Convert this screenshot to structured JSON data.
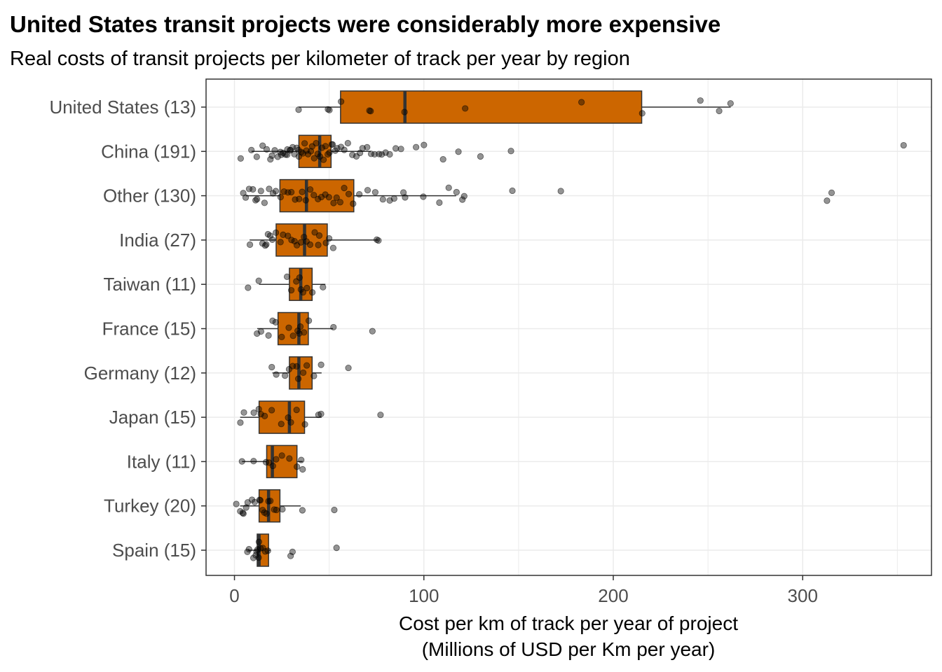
{
  "chart_data": {
    "type": "boxplot",
    "title": "United States transit projects were considerably more expensive",
    "subtitle": "Real costs of transit projects per kilometer of track per year by region",
    "xlabel_line1": "Cost per km of track per year of project",
    "xlabel_line2": "(Millions of USD per Km per year)",
    "xlim": [
      -15,
      368
    ],
    "xticks": [
      0,
      100,
      200,
      300
    ],
    "grid": true,
    "colors": {
      "box_fill": "#cc6600",
      "box_stroke": "#333333",
      "point": "#000000",
      "grid": "#ebebeb"
    },
    "categories": [
      {
        "label": "United States (13)",
        "whisker": [
          34,
          262
        ],
        "q1": 56,
        "median": 90,
        "q3": 215,
        "points": [
          34,
          49,
          50,
          56,
          71,
          72,
          90,
          122,
          183,
          215,
          246,
          256,
          262
        ]
      },
      {
        "label": "China (191)",
        "whisker": [
          9,
          72
        ],
        "q1": 34,
        "median": 45,
        "q3": 51,
        "points": [
          3,
          9,
          12,
          15,
          17,
          19,
          20,
          21,
          23,
          24,
          25,
          26,
          27,
          28,
          28,
          29,
          30,
          31,
          32,
          33,
          34,
          34,
          35,
          36,
          37,
          38,
          39,
          40,
          41,
          42,
          43,
          44,
          45,
          46,
          47,
          48,
          49,
          50,
          51,
          52,
          53,
          54,
          56,
          58,
          60,
          62,
          64,
          66,
          68,
          70,
          72,
          74,
          76,
          78,
          80,
          82,
          85,
          88,
          96,
          100,
          110,
          118,
          130,
          146,
          353
        ]
      },
      {
        "label": "Other (130)",
        "whisker": [
          6,
          117
        ],
        "q1": 24,
        "median": 38,
        "q3": 63,
        "points": [
          5,
          6,
          8,
          10,
          11,
          12,
          14,
          16,
          18,
          20,
          22,
          24,
          26,
          28,
          30,
          32,
          34,
          36,
          38,
          40,
          42,
          44,
          46,
          48,
          50,
          52,
          54,
          56,
          58,
          60,
          63,
          66,
          70,
          74,
          78,
          82,
          84,
          89,
          90,
          100,
          108,
          113,
          117,
          120,
          121,
          147,
          172,
          313,
          315
        ]
      },
      {
        "label": "India (27)",
        "whisker": [
          8,
          76
        ],
        "q1": 22,
        "median": 37,
        "q3": 49,
        "points": [
          8,
          15,
          16,
          17,
          18,
          19,
          20,
          22,
          24,
          26,
          28,
          30,
          32,
          33,
          35,
          37,
          38,
          40,
          42,
          44,
          45,
          48,
          50,
          52,
          75,
          76
        ]
      },
      {
        "label": "Taiwan (11)",
        "whisker": [
          13,
          48
        ],
        "q1": 29,
        "median": 35,
        "q3": 41,
        "points": [
          7,
          13,
          28,
          30,
          33,
          34,
          35,
          36,
          38,
          41,
          47
        ]
      },
      {
        "label": "France (15)",
        "whisker": [
          12,
          52
        ],
        "q1": 23,
        "median": 34,
        "q3": 39,
        "points": [
          12,
          14,
          18,
          20,
          22,
          25,
          29,
          31,
          33,
          34,
          35,
          37,
          39,
          52,
          73
        ]
      },
      {
        "label": "Germany (12)",
        "whisker": [
          20,
          46
        ],
        "q1": 29,
        "median": 34,
        "q3": 41,
        "points": [
          20,
          22,
          27,
          29,
          31,
          33,
          34,
          36,
          38,
          42,
          46,
          60
        ]
      },
      {
        "label": "Japan (15)",
        "whisker": [
          3,
          46
        ],
        "q1": 13,
        "median": 29,
        "q3": 37,
        "points": [
          3,
          5,
          10,
          13,
          14,
          16,
          20,
          25,
          28,
          30,
          33,
          37,
          44,
          46,
          77
        ]
      },
      {
        "label": "Italy (11)",
        "whisker": [
          4,
          36
        ],
        "q1": 17,
        "median": 20,
        "q3": 33,
        "points": [
          4,
          10,
          17,
          18,
          20,
          22,
          25,
          29,
          33,
          35,
          36
        ]
      },
      {
        "label": "Turkey (20)",
        "whisker": [
          3,
          35
        ],
        "q1": 13,
        "median": 18,
        "q3": 24,
        "points": [
          1,
          3,
          4,
          5,
          6,
          7,
          9,
          11,
          13,
          14,
          15,
          16,
          17,
          18,
          19,
          21,
          22,
          25,
          36,
          53
        ]
      },
      {
        "label": "Spain (15)",
        "whisker": [
          7,
          19
        ],
        "q1": 12,
        "median": 13,
        "q3": 18,
        "points": [
          7,
          8,
          10,
          11,
          12,
          12,
          13,
          13,
          14,
          15,
          16,
          18,
          30,
          31,
          54
        ]
      }
    ]
  }
}
